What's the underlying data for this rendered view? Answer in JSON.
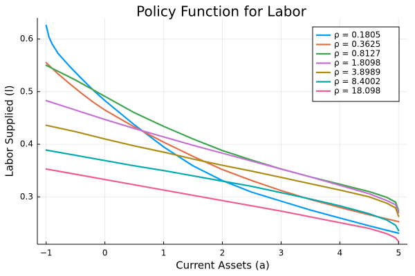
{
  "chart_data": {
    "type": "line",
    "title": "Policy Function for Labor",
    "xlabel": "Current Assets (a)",
    "ylabel": "Labor Supplied (l)",
    "xlim": [
      -1.15,
      5.15
    ],
    "ylim": [
      0.21,
      0.64
    ],
    "xticks": [
      -1,
      0,
      1,
      2,
      3,
      4,
      5
    ],
    "xtick_labels": [
      "−1",
      "0",
      "1",
      "2",
      "3",
      "4",
      "5"
    ],
    "yticks": [
      0.3,
      0.4,
      0.5,
      0.6
    ],
    "ytick_labels": [
      "0.3",
      "0.4",
      "0.5",
      "0.6"
    ],
    "grid": true,
    "legend_position": "top-right",
    "series": [
      {
        "name": "ρ = 0.1805",
        "color": "#009AFA",
        "x": [
          -1,
          -0.95,
          -0.9,
          -0.8,
          -0.6,
          -0.4,
          -0.2,
          0,
          0.5,
          1,
          1.5,
          2,
          2.5,
          3,
          3.5,
          4,
          4.5,
          5
        ],
        "y": [
          0.626,
          0.603,
          0.591,
          0.573,
          0.548,
          0.525,
          0.503,
          0.483,
          0.437,
          0.395,
          0.359,
          0.331,
          0.309,
          0.292,
          0.275,
          0.26,
          0.245,
          0.231
        ]
      },
      {
        "name": "ρ = 0.3625",
        "color": "#E36F47",
        "x": [
          -1,
          -0.8,
          -0.6,
          -0.4,
          -0.2,
          0,
          0.5,
          1,
          1.5,
          2,
          2.5,
          3,
          3.5,
          4,
          4.5,
          5
        ],
        "y": [
          0.555,
          0.534,
          0.515,
          0.497,
          0.48,
          0.465,
          0.433,
          0.404,
          0.377,
          0.352,
          0.331,
          0.312,
          0.295,
          0.28,
          0.266,
          0.253
        ]
      },
      {
        "name": "ρ = 0.8127",
        "color": "#3EA44E",
        "x": [
          -1,
          -0.5,
          0,
          0.5,
          1,
          1.5,
          2,
          2.5,
          3,
          3.5,
          4,
          4.5,
          4.8,
          4.95,
          5
        ],
        "y": [
          0.55,
          0.522,
          0.491,
          0.46,
          0.434,
          0.41,
          0.388,
          0.37,
          0.353,
          0.338,
          0.324,
          0.31,
          0.299,
          0.29,
          0.273
        ]
      },
      {
        "name": "ρ = 1.8098",
        "color": "#C371D2",
        "x": [
          -1,
          -0.5,
          0,
          0.5,
          1,
          1.5,
          2,
          2.5,
          3,
          3.5,
          4,
          4.5,
          4.8,
          4.95,
          5
        ],
        "y": [
          0.483,
          0.465,
          0.447,
          0.43,
          0.414,
          0.398,
          0.383,
          0.368,
          0.353,
          0.338,
          0.322,
          0.306,
          0.293,
          0.285,
          0.27
        ]
      },
      {
        "name": "ρ = 3.8989",
        "color": "#AC8D18",
        "x": [
          -1,
          -0.5,
          0,
          0.5,
          1,
          1.5,
          2,
          2.5,
          3,
          3.5,
          4,
          4.5,
          4.8,
          4.95,
          5
        ],
        "y": [
          0.436,
          0.424,
          0.41,
          0.397,
          0.385,
          0.372,
          0.36,
          0.349,
          0.337,
          0.325,
          0.313,
          0.3,
          0.288,
          0.279,
          0.263
        ]
      },
      {
        "name": "ρ = 8.4002",
        "color": "#00A9AD",
        "x": [
          -1,
          -0.5,
          0,
          0.5,
          1,
          1.5,
          2,
          2.5,
          3,
          3.5,
          4,
          4.5,
          4.8,
          4.95,
          5
        ],
        "y": [
          0.389,
          0.379,
          0.369,
          0.359,
          0.35,
          0.34,
          0.33,
          0.32,
          0.308,
          0.296,
          0.283,
          0.268,
          0.256,
          0.246,
          0.236
        ]
      },
      {
        "name": "ρ = 18.098",
        "color": "#ED5D92",
        "x": [
          -1,
          -0.5,
          0,
          0.5,
          1,
          1.5,
          2,
          2.5,
          3,
          3.5,
          4,
          4.5,
          4.8,
          4.95,
          5
        ],
        "y": [
          0.353,
          0.343,
          0.333,
          0.323,
          0.313,
          0.303,
          0.293,
          0.283,
          0.273,
          0.262,
          0.251,
          0.24,
          0.23,
          0.222,
          0.215
        ]
      }
    ]
  }
}
